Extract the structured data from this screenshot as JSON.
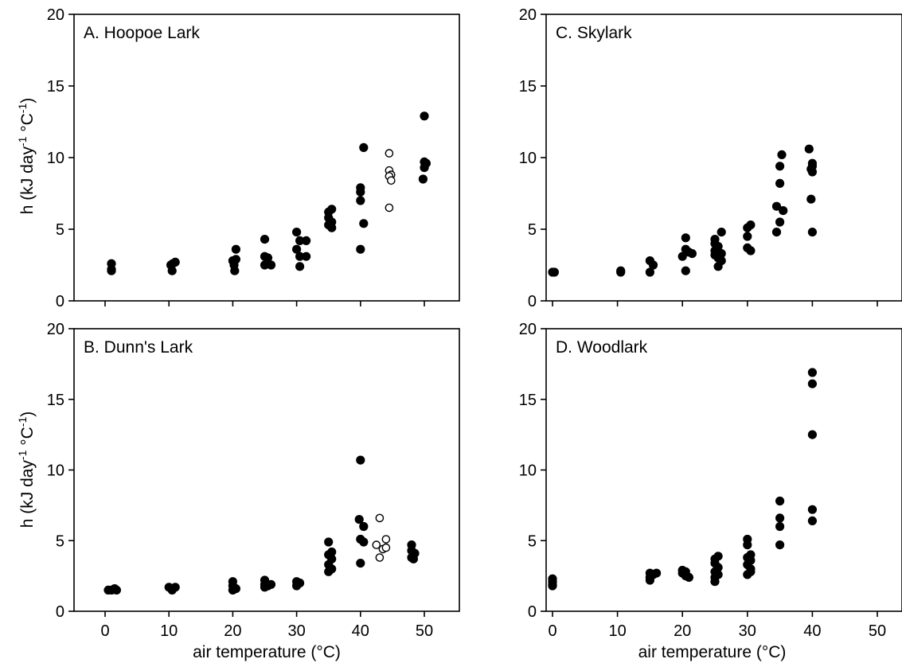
{
  "figure": {
    "ylabel_main": "h (kJ day",
    "ylabel_exp1": "-1",
    "ylabel_mid": " °C",
    "ylabel_exp2": "-1",
    "ylabel_end": ")",
    "xlabel": "air temperature (°C)"
  },
  "chart_data": [
    {
      "type": "scatter",
      "title": "A. Hoopoe Lark",
      "xlim": [
        -5,
        55
      ],
      "ylim": [
        0,
        20
      ],
      "xticks": [
        "0",
        "10",
        "20",
        "30",
        "40",
        "50"
      ],
      "yticks": [
        "0",
        "5",
        "10",
        "15",
        "20"
      ],
      "ylabel": "h (kJ day-1 °C-1)",
      "xlabel": "",
      "show_xtick_labels": false,
      "series": [
        {
          "marker": "filled",
          "points": [
            [
              1,
              2.6
            ],
            [
              1,
              2.2
            ],
            [
              1,
              2.1
            ],
            [
              10.3,
              2.5
            ],
            [
              10.6,
              2.6
            ],
            [
              11,
              2.7
            ],
            [
              10.5,
              2.1
            ],
            [
              20,
              2.8
            ],
            [
              20.5,
              3.6
            ],
            [
              20.5,
              2.9
            ],
            [
              20.2,
              2.5
            ],
            [
              20.3,
              2.1
            ],
            [
              25,
              4.3
            ],
            [
              25,
              3.1
            ],
            [
              25.5,
              3.0
            ],
            [
              25,
              2.5
            ],
            [
              26,
              2.5
            ],
            [
              30,
              4.8
            ],
            [
              30.5,
              4.2
            ],
            [
              31.5,
              4.2
            ],
            [
              30,
              3.6
            ],
            [
              30.5,
              3.1
            ],
            [
              31.5,
              3.1
            ],
            [
              30.5,
              2.4
            ],
            [
              35,
              6.2
            ],
            [
              35.5,
              6.4
            ],
            [
              35,
              5.8
            ],
            [
              35.5,
              5.5
            ],
            [
              35,
              5.3
            ],
            [
              35.5,
              5.1
            ],
            [
              40,
              7.9
            ],
            [
              40,
              7.6
            ],
            [
              40.5,
              10.7
            ],
            [
              40,
              7.0
            ],
            [
              40.5,
              5.4
            ],
            [
              40,
              3.6
            ],
            [
              50,
              12.9
            ],
            [
              50,
              9.7
            ],
            [
              50.3,
              9.6
            ],
            [
              50,
              9.3
            ],
            [
              49.8,
              8.5
            ]
          ]
        },
        {
          "marker": "open",
          "points": [
            [
              44.5,
              10.3
            ],
            [
              44.5,
              9.1
            ],
            [
              44.8,
              8.8
            ],
            [
              44.5,
              8.7
            ],
            [
              44.8,
              8.4
            ],
            [
              44.5,
              6.5
            ]
          ]
        }
      ]
    },
    {
      "type": "scatter",
      "title": "B. Dunn's Lark",
      "xlim": [
        -5,
        55
      ],
      "ylim": [
        0,
        20
      ],
      "xticks": [
        "0",
        "10",
        "20",
        "30",
        "40",
        "50"
      ],
      "yticks": [
        "0",
        "5",
        "10",
        "15",
        "20"
      ],
      "ylabel": "h (kJ day-1 °C-1)",
      "xlabel": "air temperature (°C)",
      "show_xtick_labels": true,
      "series": [
        {
          "marker": "filled",
          "points": [
            [
              0.5,
              1.5
            ],
            [
              1,
              1.5
            ],
            [
              1.5,
              1.6
            ],
            [
              1.8,
              1.5
            ],
            [
              10,
              1.7
            ],
            [
              10.5,
              1.6
            ],
            [
              11,
              1.7
            ],
            [
              10.5,
              1.5
            ],
            [
              20,
              2.1
            ],
            [
              20,
              1.8
            ],
            [
              20.5,
              1.6
            ],
            [
              20,
              1.5
            ],
            [
              25,
              2.2
            ],
            [
              25,
              1.9
            ],
            [
              25.5,
              1.8
            ],
            [
              26,
              1.9
            ],
            [
              25,
              1.7
            ],
            [
              30,
              2.1
            ],
            [
              30.5,
              2.0
            ],
            [
              30,
              1.8
            ],
            [
              35,
              4.9
            ],
            [
              35.5,
              4.2
            ],
            [
              35,
              4.0
            ],
            [
              35.5,
              3.7
            ],
            [
              35,
              3.3
            ],
            [
              35.5,
              3.0
            ],
            [
              35,
              2.8
            ],
            [
              40,
              10.7
            ],
            [
              39.8,
              6.5
            ],
            [
              40.5,
              6.0
            ],
            [
              40,
              5.1
            ],
            [
              40.5,
              4.9
            ],
            [
              40,
              3.4
            ],
            [
              48,
              4.7
            ],
            [
              48,
              4.3
            ],
            [
              48.5,
              4.1
            ],
            [
              48,
              3.8
            ],
            [
              48.3,
              3.7
            ]
          ]
        },
        {
          "marker": "open",
          "points": [
            [
              43,
              6.6
            ],
            [
              42.5,
              4.7
            ],
            [
              43.5,
              4.4
            ],
            [
              44,
              5.1
            ],
            [
              44,
              4.5
            ],
            [
              43,
              3.8
            ]
          ]
        }
      ]
    },
    {
      "type": "scatter",
      "title": "C. Skylark",
      "xlim": [
        -5,
        55
      ],
      "ylim": [
        0,
        20
      ],
      "xticks": [
        "0",
        "10",
        "20",
        "30",
        "40",
        "50"
      ],
      "yticks": [
        "0",
        "5",
        "10",
        "15",
        "20"
      ],
      "ylabel": "",
      "xlabel": "",
      "show_xtick_labels": false,
      "series": [
        {
          "marker": "filled",
          "points": [
            [
              0,
              2.0
            ],
            [
              0.3,
              2.0
            ],
            [
              10.5,
              2.1
            ],
            [
              10.5,
              2.0
            ],
            [
              15,
              2.8
            ],
            [
              15.5,
              2.5
            ],
            [
              15,
              2.0
            ],
            [
              20.5,
              4.4
            ],
            [
              20.5,
              3.6
            ],
            [
              20,
              3.1
            ],
            [
              21,
              3.4
            ],
            [
              21.5,
              3.3
            ],
            [
              20.5,
              2.1
            ],
            [
              25,
              4.3
            ],
            [
              25,
              4.0
            ],
            [
              25.5,
              3.8
            ],
            [
              25,
              3.5
            ],
            [
              25,
              3.2
            ],
            [
              25.5,
              3.0
            ],
            [
              26,
              4.8
            ],
            [
              26,
              3.3
            ],
            [
              26,
              2.8
            ],
            [
              25.5,
              2.4
            ],
            [
              30,
              5.1
            ],
            [
              30.5,
              5.3
            ],
            [
              30,
              4.5
            ],
            [
              30,
              3.7
            ],
            [
              30.5,
              3.5
            ],
            [
              34.5,
              6.6
            ],
            [
              35,
              9.4
            ],
            [
              35.3,
              10.2
            ],
            [
              35,
              8.2
            ],
            [
              35.5,
              6.3
            ],
            [
              35,
              5.5
            ],
            [
              34.5,
              4.8
            ],
            [
              39.5,
              10.6
            ],
            [
              40,
              9.6
            ],
            [
              40,
              9.4
            ],
            [
              39.8,
              9.2
            ],
            [
              40,
              9.0
            ],
            [
              39.8,
              7.1
            ],
            [
              40,
              4.8
            ]
          ]
        }
      ]
    },
    {
      "type": "scatter",
      "title": "D. Woodlark",
      "xlim": [
        -5,
        55
      ],
      "ylim": [
        0,
        20
      ],
      "xticks": [
        "0",
        "10",
        "20",
        "30",
        "40",
        "50"
      ],
      "yticks": [
        "0",
        "5",
        "10",
        "15",
        "20"
      ],
      "ylabel": "",
      "xlabel": "air temperature (°C)",
      "show_xtick_labels": true,
      "series": [
        {
          "marker": "filled",
          "points": [
            [
              0,
              2.3
            ],
            [
              0,
              2.1
            ],
            [
              0,
              1.9
            ],
            [
              0,
              1.8
            ],
            [
              15,
              2.7
            ],
            [
              15.5,
              2.6
            ],
            [
              15,
              2.4
            ],
            [
              15,
              2.2
            ],
            [
              16,
              2.7
            ],
            [
              20,
              2.9
            ],
            [
              20.5,
              2.8
            ],
            [
              20,
              2.7
            ],
            [
              20.5,
              2.5
            ],
            [
              21,
              2.4
            ],
            [
              25,
              3.7
            ],
            [
              25.5,
              3.9
            ],
            [
              25,
              3.4
            ],
            [
              25.5,
              3.1
            ],
            [
              25,
              2.8
            ],
            [
              25.5,
              2.6
            ],
            [
              25,
              2.4
            ],
            [
              25,
              2.1
            ],
            [
              30,
              5.1
            ],
            [
              30,
              4.7
            ],
            [
              30.5,
              4.0
            ],
            [
              30,
              3.8
            ],
            [
              30.5,
              3.6
            ],
            [
              30,
              3.3
            ],
            [
              30.5,
              3.0
            ],
            [
              30,
              2.6
            ],
            [
              30.5,
              2.8
            ],
            [
              35,
              7.8
            ],
            [
              35,
              6.6
            ],
            [
              35,
              6.0
            ],
            [
              35,
              4.7
            ],
            [
              40,
              16.9
            ],
            [
              40,
              16.1
            ],
            [
              40,
              12.5
            ],
            [
              40,
              7.2
            ],
            [
              40,
              6.4
            ]
          ]
        }
      ]
    }
  ]
}
